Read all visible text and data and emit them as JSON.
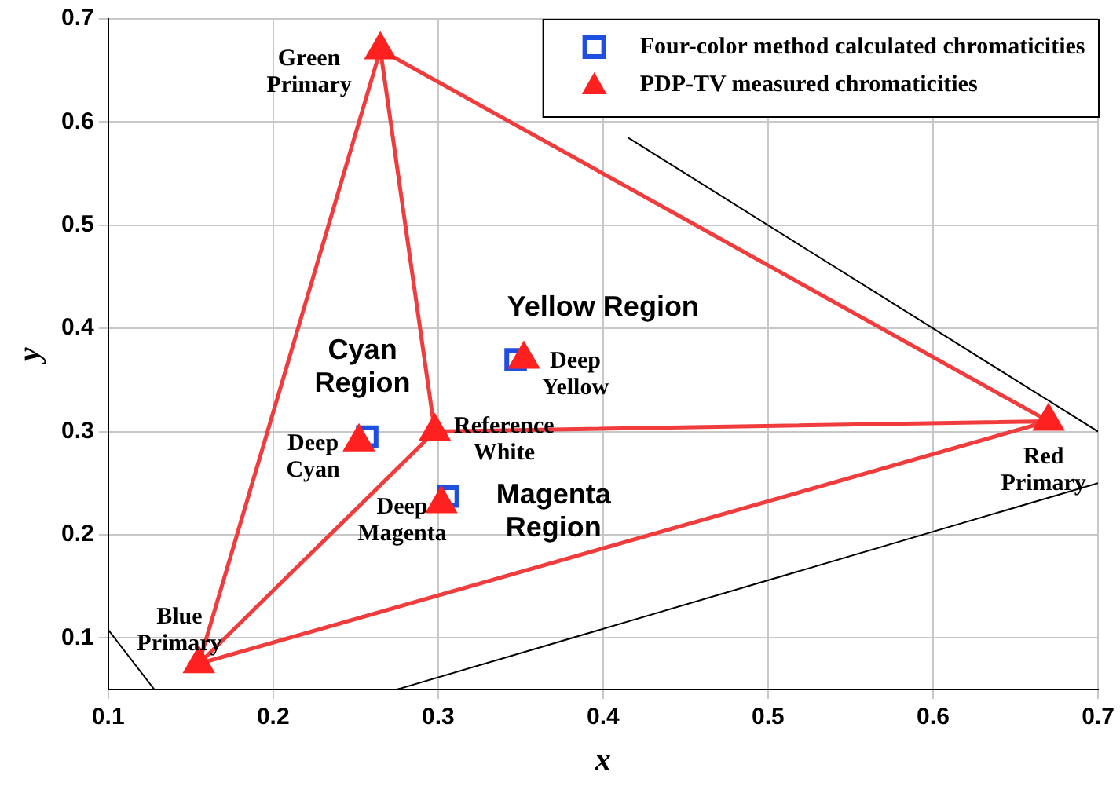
{
  "chart_data": {
    "type": "scatter",
    "xlabel": "x",
    "ylabel": "y",
    "xlim": [
      0.1,
      0.7
    ],
    "xticks": [
      0.1,
      0.2,
      0.3,
      0.4,
      0.5,
      0.6,
      0.7
    ],
    "ylim": [
      0.05,
      0.7
    ],
    "yticks": [
      0.1,
      0.2,
      0.3,
      0.4,
      0.5,
      0.6,
      0.7
    ],
    "grid": true,
    "legend": "top right",
    "series": [
      {
        "type": "line",
        "color": "#000000",
        "marker": "none",
        "x": [
          0.1,
          0.128
        ],
        "values": [
          0.108,
          0.05
        ]
      },
      {
        "type": "line",
        "color": "#000000",
        "marker": "none",
        "x": [
          0.275,
          0.7
        ],
        "values": [
          0.05,
          0.25
        ]
      },
      {
        "type": "line",
        "color": "#000000",
        "marker": "none",
        "x": [
          0.415,
          0.7
        ],
        "values": [
          0.585,
          0.3
        ]
      },
      {
        "type": "line",
        "color": "#f03c3c",
        "marker": "none",
        "x": [
          0.155,
          0.265,
          0.298,
          0.67,
          0.155,
          0.298
        ],
        "values": [
          0.075,
          0.67,
          0.3,
          0.31,
          0.075,
          0.3
        ]
      },
      {
        "type": "line",
        "color": "#f03c3c",
        "marker": "none",
        "x": [
          0.265,
          0.67
        ],
        "values": [
          0.67,
          0.31
        ]
      },
      {
        "type": "scatter",
        "name": "Four-color method calculated chromaticities",
        "color": "#1f4fe0",
        "marker": "square",
        "x": [
          0.347,
          0.257,
          0.306
        ],
        "values": [
          0.37,
          0.295,
          0.237
        ]
      },
      {
        "type": "scatter",
        "name": "PDP-TV measured chromaticities",
        "color": "#ff2020",
        "marker": "triangle",
        "x": [
          0.265,
          0.67,
          0.155,
          0.298,
          0.352,
          0.252,
          0.302
        ],
        "values": [
          0.67,
          0.31,
          0.075,
          0.3,
          0.37,
          0.29,
          0.23
        ]
      }
    ],
    "annotations": [
      "Green\nPrimary",
      "Red\nPrimary",
      "Blue\nPrimary",
      "Reference\nWhite",
      "Deep\nYellow",
      "Deep\nCyan",
      "Deep\nMagenta",
      "Yellow Region",
      "Cyan\nRegion",
      "Magenta\nRegion"
    ]
  }
}
